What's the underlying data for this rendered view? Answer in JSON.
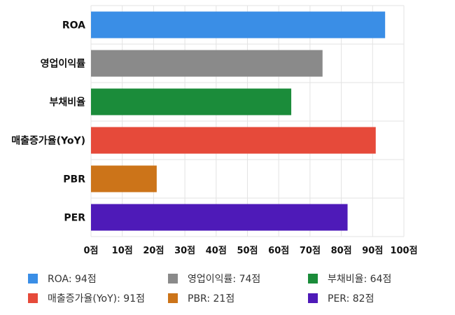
{
  "chart_data": {
    "type": "bar",
    "orientation": "horizontal",
    "categories": [
      "ROA",
      "영업이익률",
      "부채비율",
      "매출증가율(YoY)",
      "PBR",
      "PER"
    ],
    "values": [
      94,
      74,
      64,
      91,
      21,
      82
    ],
    "colors": [
      "#3a8ee6",
      "#8a8a8a",
      "#1b8c3a",
      "#e64a3a",
      "#cc7419",
      "#4e1ab8"
    ],
    "xlim": [
      0,
      100
    ],
    "xticks": [
      "0점",
      "10점",
      "20점",
      "30점",
      "40점",
      "50점",
      "60점",
      "70점",
      "80점",
      "90점",
      "100점"
    ],
    "grid": true,
    "legend_position": "bottom",
    "legend": [
      "ROA: 94점",
      "영업이익률: 74점",
      "부채비율: 64점",
      "매출증가율(YoY): 91점",
      "PBR: 21점",
      "PER: 82점"
    ]
  }
}
